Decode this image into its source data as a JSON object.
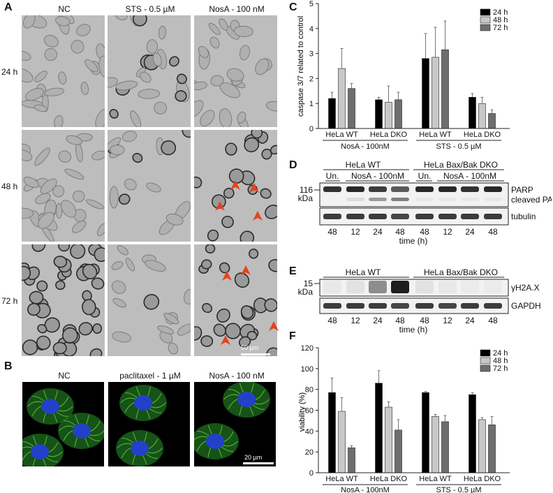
{
  "panels": {
    "A": {
      "label": "A",
      "columns": [
        "NC",
        "STS - 0.5 µM",
        "NosA - 100 nM"
      ],
      "rows": [
        "24 h",
        "48 h",
        "72 h"
      ],
      "scale_bar": "50 µm"
    },
    "B": {
      "label": "B",
      "columns": [
        "NC",
        "paclitaxel - 1 µM",
        "NosA - 100 nM"
      ],
      "scale_bar": "20 µm"
    },
    "C": {
      "label": "C",
      "ylabel": "caspase 3/7 related to control",
      "yticks": [
        "0",
        "1",
        "2",
        "3",
        "4",
        "5"
      ],
      "legend": [
        "24 h",
        "48 h",
        "72 h"
      ]
    },
    "D": {
      "label": "D",
      "group_wt": "HeLa WT",
      "group_dko": "HeLa Bax/Bak DKO",
      "un": "Un.",
      "treat": "NosA - 100nM",
      "marker": "116",
      "marker_unit": "kDa",
      "band_labels": [
        "PARP",
        "cleaved PARP",
        "tubulin"
      ],
      "lanes": [
        "48",
        "12",
        "24",
        "48",
        "48",
        "12",
        "24",
        "48"
      ],
      "time_label": "time (h)"
    },
    "E": {
      "label": "E",
      "group_wt": "HeLa WT",
      "group_dko": "HeLa Bax/Bak DKO",
      "un": "Un.",
      "treat": "NosA - 100nM",
      "marker": "15",
      "marker_unit": "kDa",
      "band_labels": [
        "γH2A.X",
        "GAPDH"
      ],
      "lanes": [
        "48",
        "12",
        "24",
        "48",
        "48",
        "12",
        "24",
        "48"
      ],
      "time_label": "time (h)"
    },
    "F": {
      "label": "F",
      "ylabel": "viability (%)",
      "yticks": [
        "0",
        "20",
        "40",
        "60",
        "80",
        "100",
        "120"
      ],
      "legend": [
        "24 h",
        "48 h",
        "72 h"
      ]
    }
  },
  "chart_data": [
    {
      "type": "bar",
      "panel": "C",
      "ylabel": "caspase 3/7 related to control",
      "ylim": [
        0,
        5
      ],
      "categories": [
        "HeLa WT",
        "HeLa DKO",
        "HeLa WT",
        "HeLa DKO"
      ],
      "groups": [
        {
          "label": "NosA - 100nM",
          "categories": [
            0,
            1
          ]
        },
        {
          "label": "STS - 0.5 µM",
          "categories": [
            2,
            3
          ]
        }
      ],
      "series": [
        {
          "name": "24 h",
          "color": "#000000",
          "values": [
            1.2,
            1.15,
            2.8,
            1.25
          ],
          "errors": [
            0.25,
            0.1,
            1.0,
            0.15
          ]
        },
        {
          "name": "48 h",
          "color": "#c8c8c8",
          "values": [
            2.4,
            1.05,
            2.85,
            1.0
          ],
          "errors": [
            0.8,
            0.65,
            1.2,
            0.25
          ]
        },
        {
          "name": "72 h",
          "color": "#6e6e6e",
          "values": [
            1.6,
            1.15,
            3.15,
            0.6
          ],
          "errors": [
            0.2,
            0.3,
            1.15,
            0.15
          ]
        }
      ],
      "legend_position": "top-right",
      "grid": false
    },
    {
      "type": "bar",
      "panel": "F",
      "ylabel": "viability (%)",
      "ylim": [
        0,
        120
      ],
      "categories": [
        "HeLa WT",
        "HeLa DKO",
        "HeLa WT",
        "HeLa DKO"
      ],
      "groups": [
        {
          "label": "NosA - 100nM",
          "categories": [
            0,
            1
          ]
        },
        {
          "label": "STS - 0.5 µM",
          "categories": [
            2,
            3
          ]
        }
      ],
      "series": [
        {
          "name": "24 h",
          "color": "#000000",
          "values": [
            77,
            86,
            77,
            75
          ],
          "errors": [
            14,
            12,
            1,
            2
          ]
        },
        {
          "name": "48 h",
          "color": "#c8c8c8",
          "values": [
            59,
            63,
            54,
            51
          ],
          "errors": [
            13,
            5,
            2,
            2
          ]
        },
        {
          "name": "72 h",
          "color": "#6e6e6e",
          "values": [
            24,
            41,
            49,
            46
          ],
          "errors": [
            2,
            10,
            6,
            8
          ]
        }
      ],
      "legend_position": "top-right",
      "grid": false
    }
  ],
  "blot_data": {
    "D_parp": [
      0.9,
      0.95,
      0.85,
      0.7,
      0.95,
      0.95,
      0.9,
      0.95
    ],
    "D_cleaved": [
      0.0,
      0.15,
      0.45,
      0.55,
      0.05,
      0.05,
      0.05,
      0.05
    ],
    "D_tubulin": [
      0.85,
      0.85,
      0.85,
      0.8,
      0.85,
      0.85,
      0.85,
      0.85
    ],
    "E_h2ax": [
      0.05,
      0.1,
      0.5,
      1.0,
      0.1,
      0.05,
      0.03,
      0.03
    ],
    "E_gapdh": [
      0.85,
      0.85,
      0.85,
      0.8,
      0.85,
      0.8,
      0.85,
      0.85
    ]
  }
}
